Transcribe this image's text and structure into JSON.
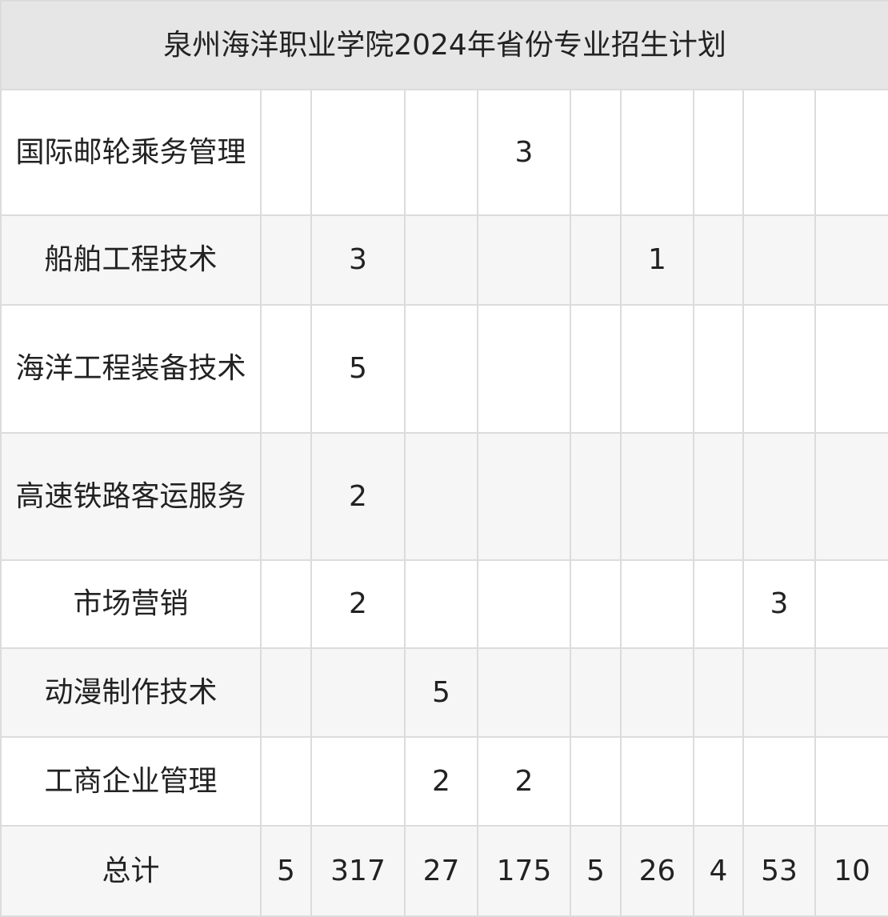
{
  "title": "泉州海洋职业学院2024年省份专业招生计划",
  "rows": [
    {
      "name": "国际邮轮乘务管理",
      "cells": [
        "",
        "",
        "",
        "3",
        "",
        "",
        "",
        "",
        ""
      ]
    },
    {
      "name": "船舶工程技术",
      "cells": [
        "",
        "3",
        "",
        "",
        "",
        "1",
        "",
        "",
        ""
      ]
    },
    {
      "name": "海洋工程装备技术",
      "cells": [
        "",
        "5",
        "",
        "",
        "",
        "",
        "",
        "",
        ""
      ]
    },
    {
      "name": "高速铁路客运服务",
      "cells": [
        "",
        "2",
        "",
        "",
        "",
        "",
        "",
        "",
        ""
      ]
    },
    {
      "name": "市场营销",
      "cells": [
        "",
        "2",
        "",
        "",
        "",
        "",
        "",
        "3",
        ""
      ]
    },
    {
      "name": "动漫制作技术",
      "cells": [
        "",
        "",
        "5",
        "",
        "",
        "",
        "",
        "",
        ""
      ]
    },
    {
      "name": "工商企业管理",
      "cells": [
        "",
        "",
        "2",
        "2",
        "",
        "",
        "",
        "",
        ""
      ]
    }
  ],
  "total": {
    "name": "总计",
    "cells": [
      "5",
      "317",
      "27",
      "175",
      "5",
      "26",
      "4",
      "53",
      "10"
    ]
  }
}
